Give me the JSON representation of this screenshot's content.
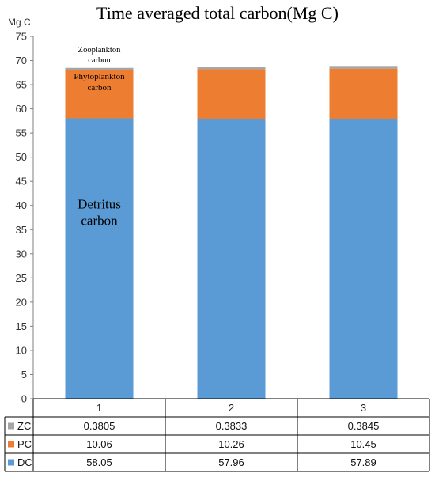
{
  "title": "Time averaged total carbon(Mg C)",
  "chart_data": {
    "type": "bar",
    "stacked": true,
    "title": "Time averaged total carbon(Mg C)",
    "ylabel": "Mg C",
    "xlabel": "",
    "ylim": [
      0,
      75
    ],
    "yticks": [
      0,
      5,
      10,
      15,
      20,
      25,
      30,
      35,
      40,
      45,
      50,
      55,
      60,
      65,
      70,
      75
    ],
    "categories": [
      "1",
      "2",
      "3"
    ],
    "series": [
      {
        "name": "DC",
        "color": "#5b9bd5",
        "values": [
          58.05,
          57.96,
          57.89
        ]
      },
      {
        "name": "PC",
        "color": "#ed7d31",
        "values": [
          10.06,
          10.26,
          10.45
        ]
      },
      {
        "name": "ZC",
        "color": "#a5a5a5",
        "values": [
          0.3805,
          0.3833,
          0.3845
        ]
      }
    ],
    "table_rows": [
      {
        "name": "ZC",
        "color": "#a5a5a5",
        "cells": [
          "0.3805",
          "0.3833",
          "0.3845"
        ]
      },
      {
        "name": "PC",
        "color": "#ed7d31",
        "cells": [
          "10.06",
          "10.26",
          "10.45"
        ]
      },
      {
        "name": "DC",
        "color": "#5b9bd5",
        "cells": [
          "58.05",
          "57.96",
          "57.89"
        ]
      }
    ],
    "annotations": [
      {
        "series": "ZC",
        "lines": [
          "Zooplankton",
          "carbon"
        ]
      },
      {
        "series": "PC",
        "lines": [
          "Phytoplankton",
          "carbon"
        ]
      },
      {
        "series": "DC",
        "lines": [
          "Detritus",
          "carbon"
        ]
      }
    ],
    "grid": false,
    "legend": "data-table"
  }
}
